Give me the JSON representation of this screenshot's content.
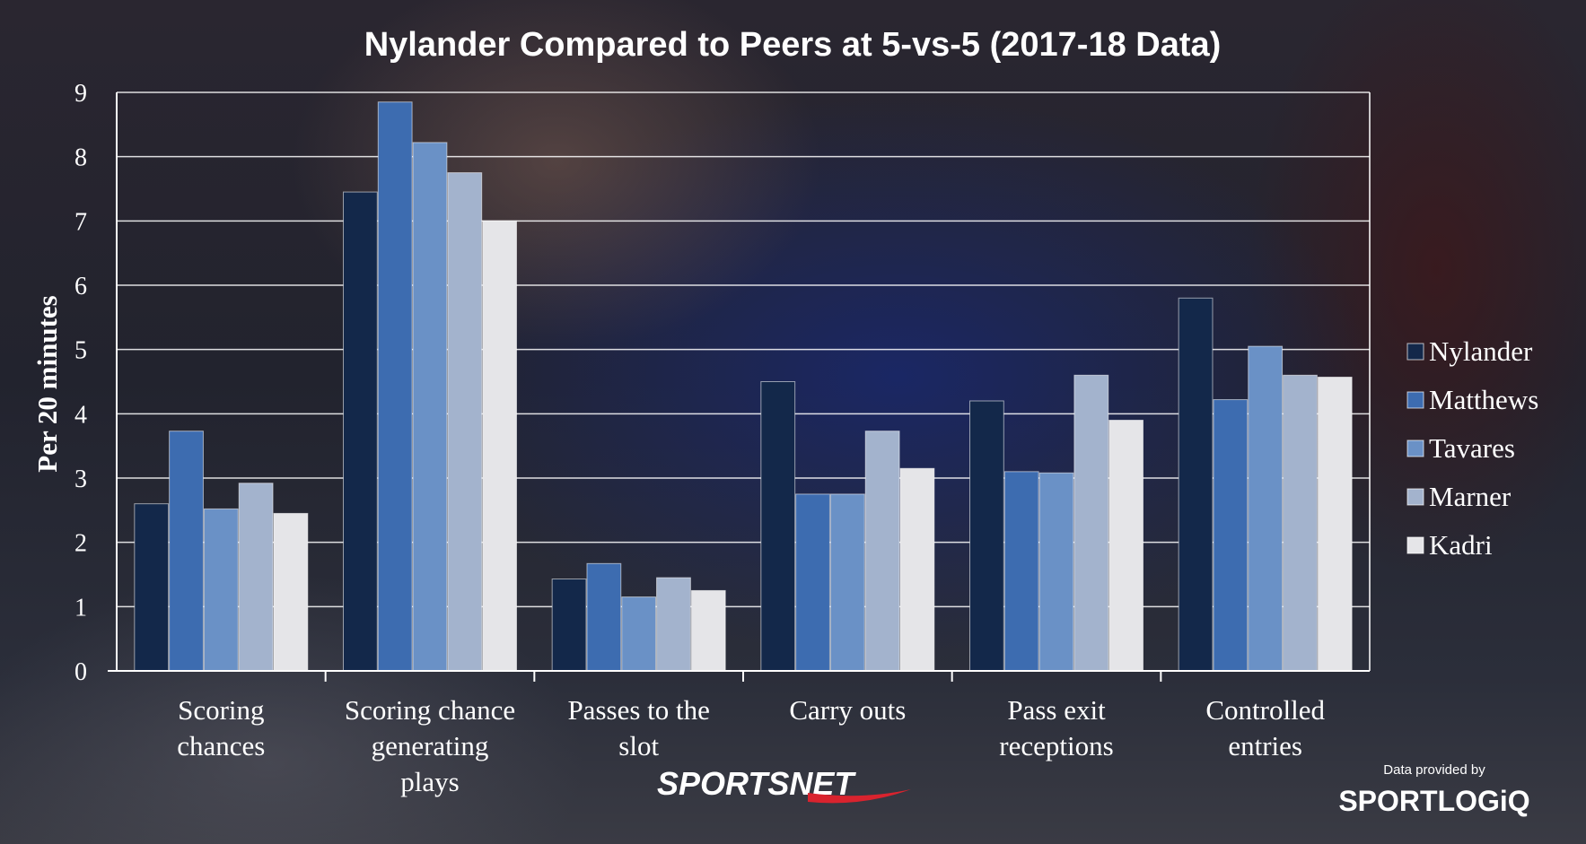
{
  "chart_data": {
    "type": "bar",
    "title": "Nylander Compared to Peers at 5-vs-5 (2017-18 Data)",
    "ylabel": "Per 20 minutes",
    "xlabel": "",
    "ylim": [
      0,
      9
    ],
    "yticks": [
      0,
      1,
      2,
      3,
      4,
      5,
      6,
      7,
      8,
      9
    ],
    "grid": true,
    "legend_position": "right",
    "categories": [
      [
        "Scoring",
        "chances"
      ],
      [
        "Scoring chance",
        "generating",
        "plays"
      ],
      [
        "Passes to the",
        "slot"
      ],
      [
        "Carry outs"
      ],
      [
        "Pass exit",
        "receptions"
      ],
      [
        "Controlled",
        "entries"
      ]
    ],
    "series": [
      {
        "name": "Nylander",
        "color": "#13284a",
        "values": [
          2.6,
          7.45,
          1.43,
          4.5,
          4.2,
          5.8
        ]
      },
      {
        "name": "Matthews",
        "color": "#3d6cb0",
        "values": [
          3.73,
          8.85,
          1.67,
          2.75,
          3.1,
          4.22
        ]
      },
      {
        "name": "Tavares",
        "color": "#6a91c6",
        "values": [
          2.52,
          8.22,
          1.15,
          2.75,
          3.08,
          5.05
        ]
      },
      {
        "name": "Marner",
        "color": "#a3b3cd",
        "values": [
          2.92,
          7.75,
          1.45,
          3.73,
          4.6,
          4.6
        ]
      },
      {
        "name": "Kadri",
        "color": "#e5e5e8",
        "values": [
          2.45,
          7.0,
          1.25,
          3.15,
          3.9,
          4.57
        ]
      }
    ]
  },
  "logos": {
    "sportsnet": "SPORTSNET",
    "provided_by": "Data provided by",
    "sportlogiq": "SPORTLOGiQ"
  }
}
